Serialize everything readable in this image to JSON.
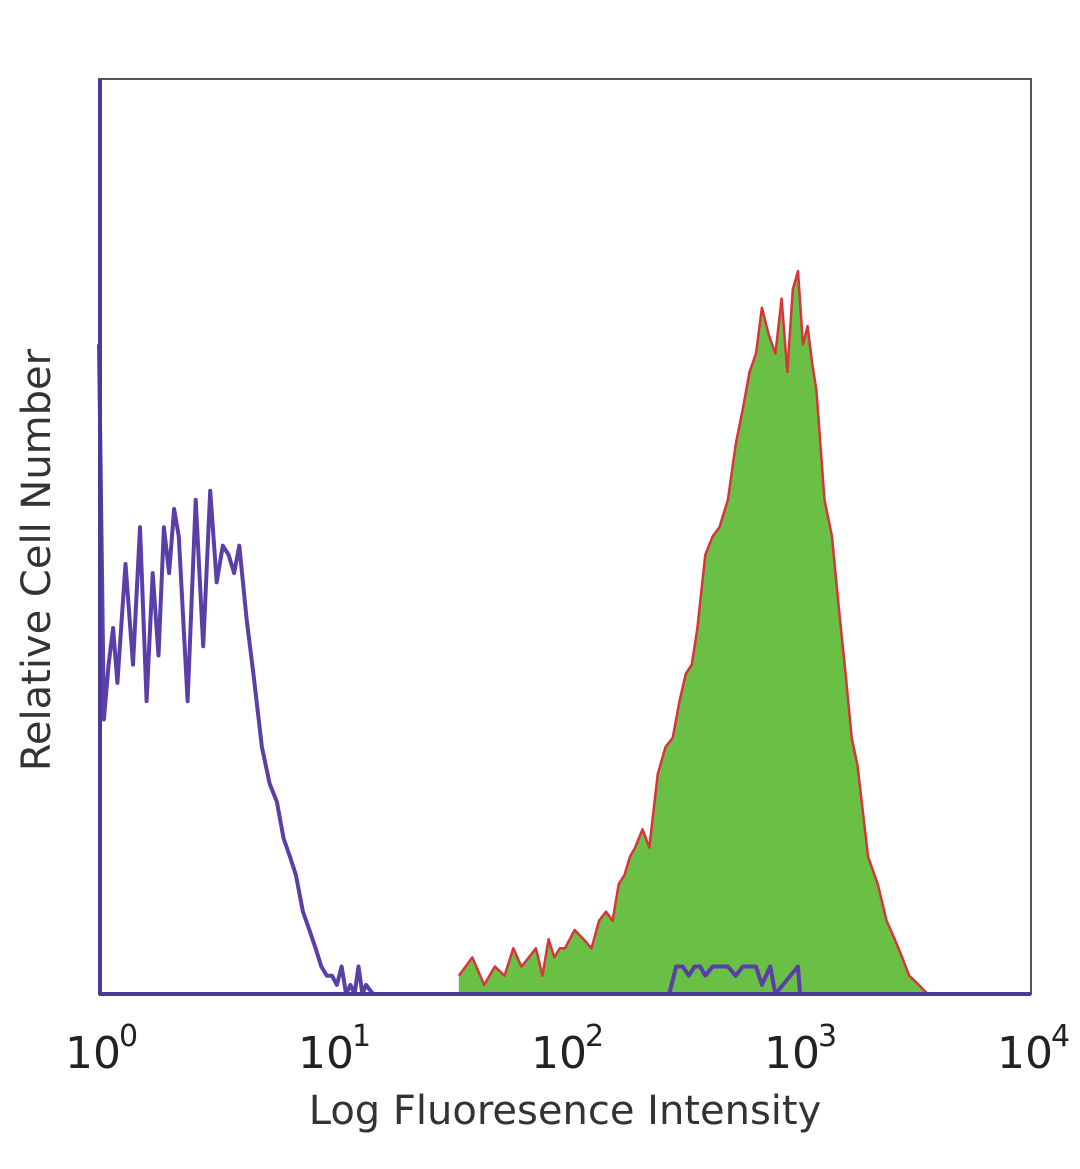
{
  "chart_data": {
    "type": "area",
    "title": "",
    "xlabel": "Log Fluoresence Intensity",
    "ylabel": "Relative Cell Number",
    "x_scale": "log",
    "xlim": [
      1,
      10000
    ],
    "ylim": [
      0,
      100
    ],
    "grid": false,
    "x_ticks": [
      {
        "base": "10",
        "exp": "0"
      },
      {
        "base": "10",
        "exp": "1"
      },
      {
        "base": "10",
        "exp": "2"
      },
      {
        "base": "10",
        "exp": "3"
      },
      {
        "base": "10",
        "exp": "4"
      }
    ],
    "series": [
      {
        "style": "outline",
        "color": "#5b3fa8",
        "x": [
          1.0,
          1.05,
          1.1,
          1.15,
          1.2,
          1.3,
          1.4,
          1.5,
          1.6,
          1.7,
          1.8,
          1.9,
          2.0,
          2.1,
          2.2,
          2.4,
          2.6,
          2.8,
          3.0,
          3.2,
          3.4,
          3.6,
          3.8,
          4.0,
          4.3,
          4.6,
          5.0,
          5.4,
          5.8,
          6.2,
          6.6,
          7.0,
          7.5,
          8.0,
          8.5,
          9.0,
          9.5,
          10.0,
          10.5,
          11.0,
          11.5,
          12.0,
          12.5,
          13.0,
          13.5,
          14.0,
          15.0
        ],
        "y": [
          71,
          30,
          36,
          40,
          34,
          47,
          36,
          51,
          32,
          46,
          37,
          51,
          46,
          53,
          50,
          32,
          54,
          38,
          55,
          45,
          49,
          48,
          46,
          49,
          41,
          35,
          27,
          23,
          21,
          17,
          15,
          13,
          9,
          7,
          5,
          3,
          2,
          2,
          1,
          3,
          0,
          1,
          0,
          3,
          0,
          1,
          0
        ]
      },
      {
        "style": "filled",
        "color": "#6abf45",
        "line_color": "#d9333b",
        "x": [
          35,
          40,
          45,
          50,
          55,
          60,
          65,
          70,
          75,
          80,
          85,
          90,
          95,
          100,
          110,
          120,
          130,
          140,
          150,
          160,
          170,
          180,
          190,
          200,
          215,
          230,
          250,
          270,
          290,
          310,
          330,
          350,
          370,
          400,
          430,
          460,
          500,
          540,
          580,
          620,
          660,
          700,
          750,
          800,
          850,
          900,
          950,
          1000,
          1050,
          1100,
          1150,
          1200,
          1300,
          1400,
          1500,
          1600,
          1700,
          1800,
          2000,
          2200,
          2400,
          2600,
          2800,
          3000,
          3300,
          3600,
          4000
        ],
        "y": [
          2,
          4,
          1,
          3,
          2,
          5,
          3,
          4,
          5,
          2,
          6,
          4,
          5,
          5,
          7,
          6,
          5,
          8,
          9,
          8,
          12,
          13,
          15,
          16,
          18,
          16,
          24,
          27,
          28,
          32,
          35,
          36,
          40,
          48,
          50,
          51,
          54,
          60,
          64,
          68,
          70,
          75,
          72,
          70,
          76,
          68,
          77,
          79,
          71,
          73,
          69,
          66,
          54,
          50,
          42,
          35,
          28,
          25,
          15,
          12,
          8,
          6,
          4,
          2,
          1,
          0,
          0
        ]
      },
      {
        "style": "outline",
        "color": "#5b3fa8",
        "x": [
          280,
          300,
          320,
          340,
          360,
          380,
          400,
          430,
          460,
          500,
          540,
          580,
          620,
          660,
          700,
          760,
          800,
          1000,
          1020
        ],
        "y": [
          0,
          3,
          3,
          2,
          3,
          3,
          2,
          3,
          3,
          3,
          2,
          3,
          3,
          3,
          1,
          3,
          0,
          3,
          0
        ]
      }
    ]
  }
}
